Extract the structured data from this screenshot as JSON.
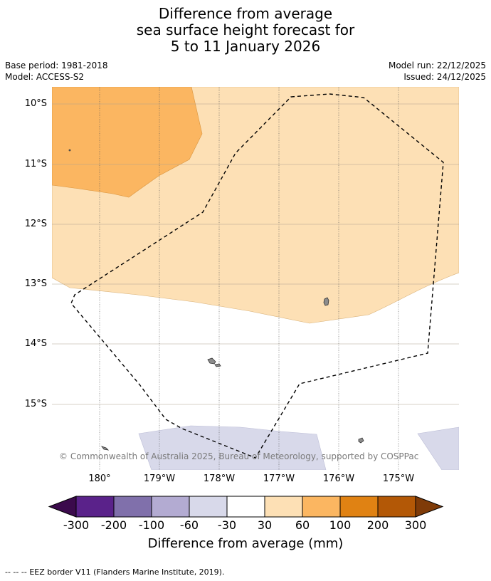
{
  "title": {
    "line1": "Difference from average",
    "line2": "sea surface height forecast for",
    "line3": "5 to 11 January 2026"
  },
  "meta": {
    "base_period": "Base period: 1981-2018",
    "model": "Model: ACCESS-S2",
    "model_run": "Model run: 22/12/2025",
    "issued": "Issued: 24/12/2025"
  },
  "map": {
    "latitude_labels": [
      "10°S",
      "11°S",
      "12°S",
      "13°S",
      "14°S",
      "15°S"
    ],
    "longitude_labels": [
      "180°",
      "179°W",
      "178°W",
      "177°W",
      "176°W",
      "175°W"
    ],
    "copyright": "© Commonwealth of Australia 2025, Bureau of Meteorology, supported by COSPPac",
    "colors": {
      "range_30_60": "#fde0b5",
      "range_60_100": "#fbb661",
      "range_neg60_neg30": "#d8d9ea",
      "land": "#8c8c8c"
    }
  },
  "colorbar": {
    "ticks": [
      "-300",
      "-200",
      "-100",
      "-60",
      "-30",
      "30",
      "60",
      "100",
      "200",
      "300"
    ],
    "colors": [
      "#3b0a4c",
      "#5a228a",
      "#8070ab",
      "#b3abd2",
      "#d8d9ea",
      "#ffffff",
      "#fde0b5",
      "#fbb661",
      "#e08213",
      "#b35806",
      "#7f3b08"
    ],
    "label": "Difference from average (mm)"
  },
  "footer": {
    "legend_symbol": "-- -- --",
    "legend_text": "EEZ border V11 (Flanders Marine Institute, 2019)."
  }
}
